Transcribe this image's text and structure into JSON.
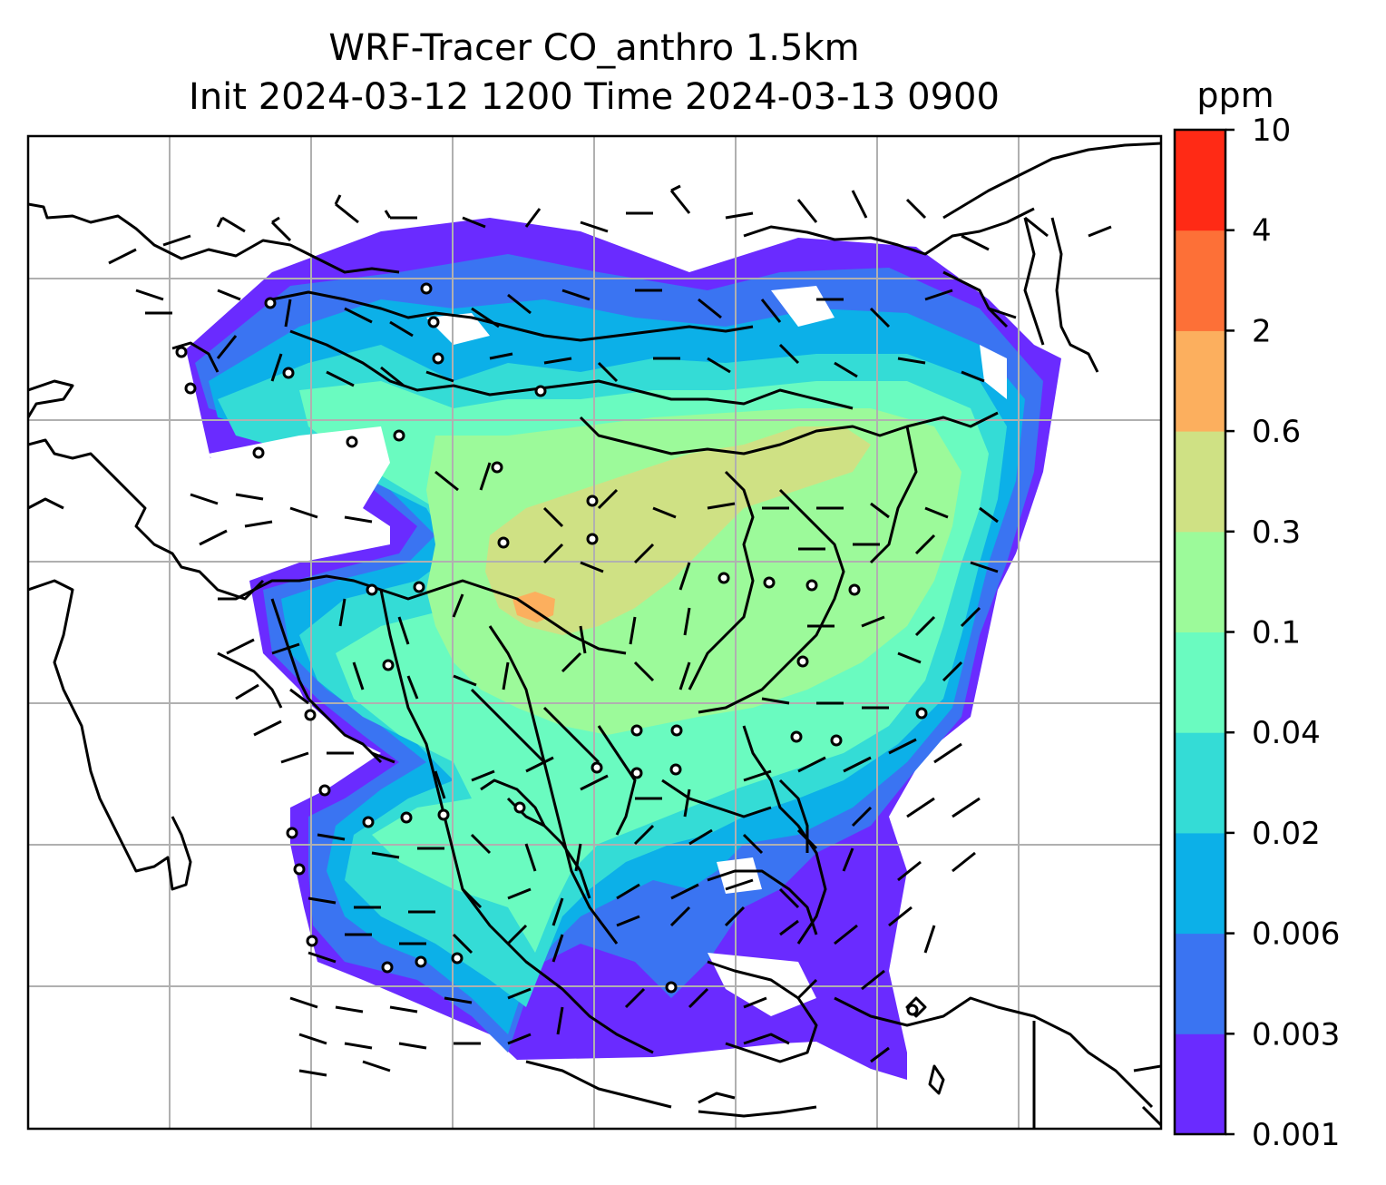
{
  "figure": {
    "title_line1": "WRF-Tracer CO_anthro 1.5km",
    "title_line2": "Init 2024-03-12 1200 Time 2024-03-13 0900"
  },
  "colorbar": {
    "unit": "ppm",
    "levels": [
      "0.001",
      "0.003",
      "0.006",
      "0.02",
      "0.04",
      "0.1",
      "0.3",
      "0.6",
      "2",
      "4",
      "10"
    ],
    "colors": [
      "#6a2bff",
      "#3a74f2",
      "#0cb0e8",
      "#34dcd6",
      "#6afbc0",
      "#9cfa9a",
      "#cfe184",
      "#fcaf5e",
      "#fd7037",
      "#ff2a15"
    ]
  },
  "map": {
    "gridlines": true,
    "background": "#ffffff",
    "coastline_color": "#000000",
    "gridline_color": "#b0b0b0",
    "field_colors": {
      "very_low": "#6a2bff",
      "low": "#3a74f2",
      "lowmid": "#0cb0e8",
      "mid": "#34dcd6",
      "midhigh": "#6afbc0",
      "high": "#9cfa9a",
      "higher": "#cfe184",
      "peak": "#fcaf5e"
    }
  }
}
